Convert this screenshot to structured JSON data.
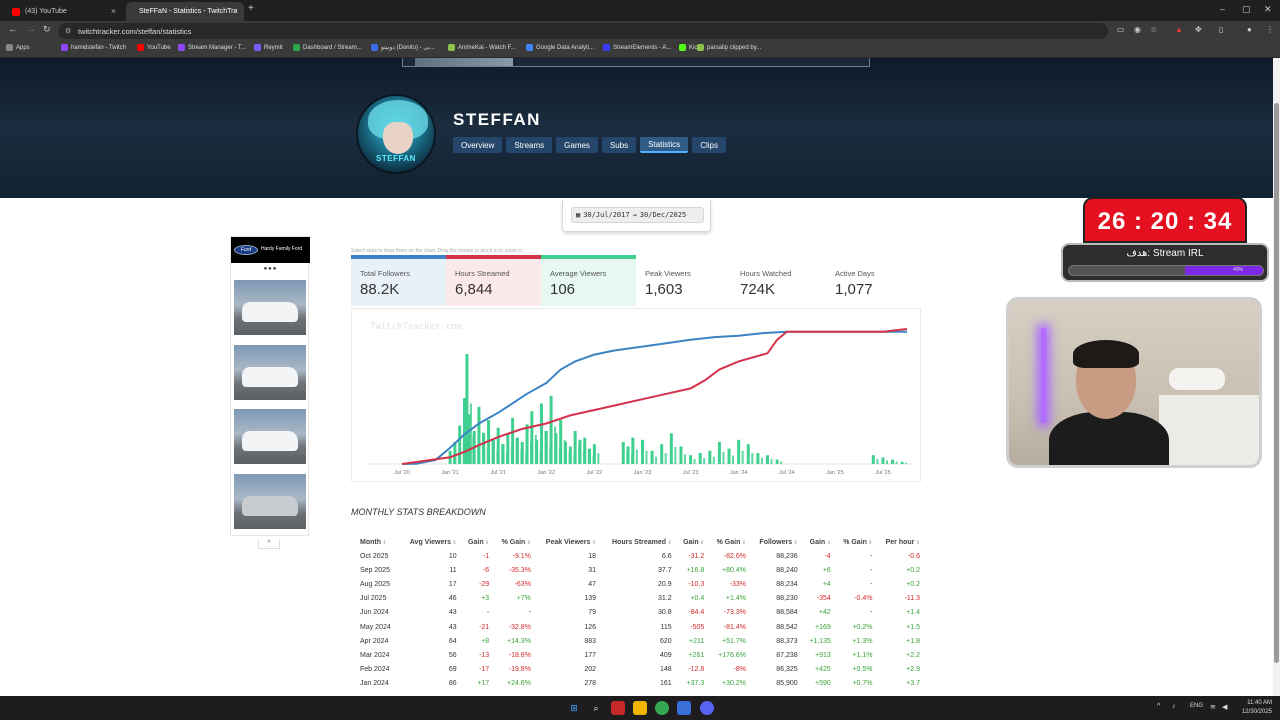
{
  "browser": {
    "tabs": [
      {
        "title": "(43) YouTube",
        "active": false,
        "color": "#ff0000"
      },
      {
        "title": "SteFFaN - Statistics - TwitchTra",
        "active": true,
        "color": "#2e7d9e"
      }
    ],
    "new_tab": "+",
    "url": "twitchtracker.com/steffan/statistics",
    "bookmarks": [
      {
        "label": "Apps",
        "color": "#888888"
      },
      {
        "label": "hamidstefan - Twitch",
        "color": "#9146ff"
      },
      {
        "label": "YouTube",
        "color": "#ff0000"
      },
      {
        "label": "Stream Manager - T...",
        "color": "#9146ff"
      },
      {
        "label": "Reymit",
        "color": "#7b5cff"
      },
      {
        "label": "Dashboard / Stream...",
        "color": "#2aa84a"
      },
      {
        "label": "دونیتو (Donito) - بی...",
        "color": "#3a6ee8"
      },
      {
        "label": "AnimeKai - Watch F...",
        "color": "#8bc34a"
      },
      {
        "label": "Google Data Analyti...",
        "color": "#4285f4"
      },
      {
        "label": "StreamElements - A...",
        "color": "#3b3bff"
      },
      {
        "label": "Kick",
        "color": "#53fc18"
      },
      {
        "label": "parsalip clipped by...",
        "color": "#8bc34a"
      }
    ]
  },
  "channel": {
    "name": "STEFFAN",
    "avatar_label": "STEFFAN",
    "tabs": [
      "Overview",
      "Streams",
      "Games",
      "Subs",
      "Statistics",
      "Clips"
    ],
    "active_tab": "Statistics"
  },
  "date_range": {
    "from": "30/Jul/2017",
    "arrow": "→",
    "to": "30/Dec/2025"
  },
  "ad": {
    "dealer": "Hardy Family Ford",
    "brand": "Ford",
    "dots": "●●●"
  },
  "chart_hint": "Select stats to draw them on the chart. Drag the mouse or pinch in to zoom in.",
  "stats": [
    {
      "label": "Total Followers",
      "value": "88.2K",
      "color": "#3b83c4",
      "bg": "#e9f1f8"
    },
    {
      "label": "Hours Streamed",
      "value": "6,844",
      "color": "#d4314a",
      "bg": "#fbe9ec"
    },
    {
      "label": "Average Viewers",
      "value": "106",
      "color": "#3fd08f",
      "bg": "#e6f8ef"
    },
    {
      "label": "Peak Viewers",
      "value": "1,603",
      "color": "transparent",
      "bg": "#ffffff"
    },
    {
      "label": "Hours Watched",
      "value": "724K",
      "color": "transparent",
      "bg": "#ffffff"
    },
    {
      "label": "Active Days",
      "value": "1,077",
      "color": "transparent",
      "bg": "#ffffff"
    }
  ],
  "chart_data": {
    "type": "line",
    "watermark": "TwitchTracker.com",
    "x_ticks": [
      "Jul '20",
      "Jan '21",
      "Jul '21",
      "Jan '22",
      "Jul '22",
      "Jan '23",
      "Jul '23",
      "Jan '24",
      "Jul '24",
      "Jan '25",
      "Jul '25"
    ],
    "series": [
      {
        "name": "Total Followers",
        "color": "#3b83c4",
        "points": [
          [
            0,
            0
          ],
          [
            0.3,
            0.2
          ],
          [
            0.7,
            3
          ],
          [
            1.0,
            12
          ],
          [
            1.3,
            22
          ],
          [
            1.6,
            30
          ],
          [
            2.0,
            38
          ],
          [
            2.3,
            45
          ],
          [
            2.6,
            52
          ],
          [
            3.0,
            60
          ],
          [
            3.3,
            70
          ],
          [
            3.6,
            76
          ],
          [
            4.0,
            81
          ],
          [
            4.4,
            84
          ],
          [
            4.8,
            86
          ],
          [
            5.2,
            88
          ],
          [
            5.6,
            90
          ],
          [
            6.0,
            92
          ],
          [
            6.5,
            94
          ],
          [
            7.0,
            95
          ],
          [
            7.5,
            97
          ],
          [
            8.0,
            98
          ],
          [
            9.0,
            98
          ],
          [
            10.0,
            98
          ],
          [
            10.5,
            98
          ]
        ]
      },
      {
        "name": "Hours Streamed",
        "color": "#d4314a",
        "points": [
          [
            0,
            0
          ],
          [
            1.0,
            5
          ],
          [
            1.3,
            9
          ],
          [
            1.6,
            14
          ],
          [
            2.0,
            20
          ],
          [
            2.5,
            26
          ],
          [
            3.0,
            30
          ],
          [
            3.5,
            36
          ],
          [
            4.0,
            40
          ],
          [
            4.5,
            44
          ],
          [
            5.0,
            48
          ],
          [
            5.5,
            52
          ],
          [
            6.0,
            56
          ],
          [
            6.3,
            62
          ],
          [
            6.6,
            70
          ],
          [
            7.0,
            76
          ],
          [
            7.3,
            79
          ],
          [
            7.6,
            82
          ],
          [
            7.8,
            92
          ],
          [
            8.0,
            98
          ],
          [
            9.0,
            98
          ],
          [
            10.0,
            98
          ],
          [
            10.5,
            100
          ]
        ]
      },
      {
        "name": "Average Viewers",
        "color": "#3fd08f",
        "bars": [
          [
            1.0,
            12
          ],
          [
            1.1,
            20
          ],
          [
            1.2,
            35
          ],
          [
            1.3,
            60
          ],
          [
            1.35,
            100
          ],
          [
            1.4,
            45
          ],
          [
            1.5,
            30
          ],
          [
            1.6,
            52
          ],
          [
            1.7,
            28
          ],
          [
            1.8,
            40
          ],
          [
            1.9,
            22
          ],
          [
            2.0,
            33
          ],
          [
            2.1,
            18
          ],
          [
            2.2,
            27
          ],
          [
            2.3,
            42
          ],
          [
            2.4,
            24
          ],
          [
            2.5,
            20
          ],
          [
            2.6,
            36
          ],
          [
            2.7,
            48
          ],
          [
            2.8,
            22
          ],
          [
            2.9,
            55
          ],
          [
            3.0,
            30
          ],
          [
            3.1,
            62
          ],
          [
            3.2,
            28
          ],
          [
            3.3,
            40
          ],
          [
            3.4,
            20
          ],
          [
            3.5,
            16
          ],
          [
            3.6,
            30
          ],
          [
            3.7,
            22
          ],
          [
            3.8,
            24
          ],
          [
            3.9,
            14
          ],
          [
            4.0,
            18
          ],
          [
            4.6,
            20
          ],
          [
            4.7,
            16
          ],
          [
            4.8,
            24
          ],
          [
            5.0,
            22
          ],
          [
            5.2,
            12
          ],
          [
            5.4,
            18
          ],
          [
            5.6,
            28
          ],
          [
            5.8,
            16
          ],
          [
            6.0,
            8
          ],
          [
            6.2,
            10
          ],
          [
            6.4,
            12
          ],
          [
            6.6,
            20
          ],
          [
            6.8,
            14
          ],
          [
            7.0,
            22
          ],
          [
            7.2,
            18
          ],
          [
            7.4,
            10
          ],
          [
            7.6,
            8
          ],
          [
            7.8,
            4
          ],
          [
            9.8,
            8
          ],
          [
            10.0,
            6
          ],
          [
            10.2,
            4
          ],
          [
            10.4,
            2
          ]
        ]
      }
    ]
  },
  "monthly": {
    "title": "MONTHLY STATS BREAKDOWN",
    "headers": [
      "Month",
      "Avg Viewers",
      "Gain",
      "% Gain",
      "Peak Viewers",
      "Hours Streamed",
      "Gain",
      "% Gain",
      "Followers",
      "Gain",
      "% Gain",
      "Per hour"
    ],
    "rows": [
      [
        "Oct 2025",
        "10",
        "-1",
        "-9.1%",
        "18",
        "6.6",
        "-31.2",
        "-82.6%",
        "88,236",
        "-4",
        "-",
        "-0.6"
      ],
      [
        "Sep 2025",
        "11",
        "-6",
        "-35.3%",
        "31",
        "37.7",
        "+16.8",
        "+80.4%",
        "88,240",
        "+6",
        "-",
        "+0.2"
      ],
      [
        "Aug 2025",
        "17",
        "-29",
        "-63%",
        "47",
        "20.9",
        "-10.3",
        "-33%",
        "88,234",
        "+4",
        "-",
        "+0.2"
      ],
      [
        "Jul 2025",
        "46",
        "+3",
        "+7%",
        "139",
        "31.2",
        "+0.4",
        "+1.4%",
        "88,230",
        "-354",
        "-0.4%",
        "-11.3"
      ],
      [
        "Jun 2024",
        "43",
        "-",
        "-",
        "79",
        "30.8",
        "-84.4",
        "-73.3%",
        "88,584",
        "+42",
        "-",
        "+1.4"
      ],
      [
        "May 2024",
        "43",
        "-21",
        "-32.8%",
        "126",
        "115",
        "-505",
        "-81.4%",
        "88,542",
        "+169",
        "+0.2%",
        "+1.5"
      ],
      [
        "Apr 2024",
        "64",
        "+8",
        "+14.3%",
        "883",
        "620",
        "+211",
        "+51.7%",
        "88,373",
        "+1,135",
        "+1.3%",
        "+1.8"
      ],
      [
        "Mar 2024",
        "56",
        "-13",
        "-18.8%",
        "177",
        "409",
        "+261",
        "+176.6%",
        "87,238",
        "+913",
        "+1.1%",
        "+2.2"
      ],
      [
        "Feb 2024",
        "69",
        "-17",
        "-19.8%",
        "202",
        "148",
        "-12.8",
        "-8%",
        "86,325",
        "+425",
        "+0.5%",
        "+2.9"
      ],
      [
        "Jan 2024",
        "86",
        "+17",
        "+24.6%",
        "278",
        "161",
        "+37.3",
        "+30.2%",
        "85,900",
        "+590",
        "+0.7%",
        "+3.7"
      ]
    ]
  },
  "overlay": {
    "timer": "26 : 20 : 34",
    "goal_label": "هدف: Stream IRL",
    "goal_progress": 0.4,
    "goal_pct": "40%"
  },
  "taskbar": {
    "lang": "ENG",
    "time": "11:40 AM",
    "date": "12/30/2025"
  }
}
